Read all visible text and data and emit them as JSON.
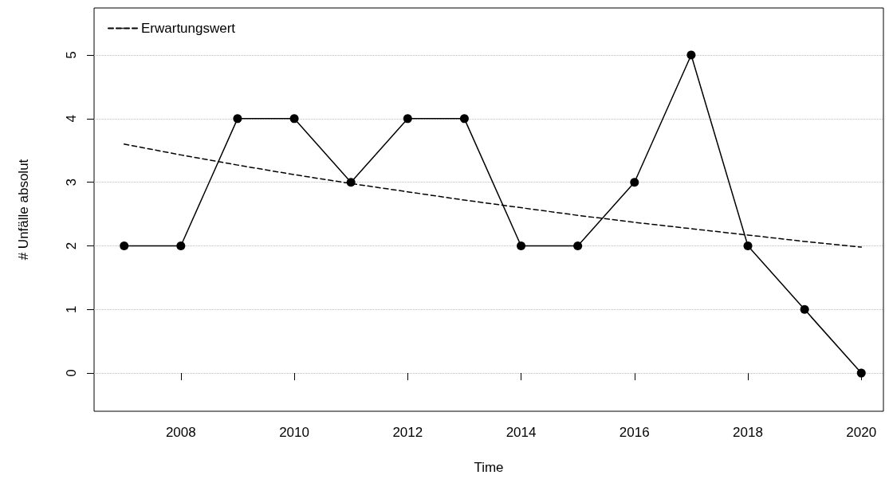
{
  "chart_data": {
    "type": "line",
    "xlabel": "Time",
    "ylabel": "# Unfälle absolut",
    "x": [
      2007,
      2008,
      2009,
      2010,
      2011,
      2012,
      2013,
      2014,
      2015,
      2016,
      2017,
      2018,
      2019,
      2020
    ],
    "series": [
      {
        "color": "#000000",
        "values": [
          2,
          2,
          4,
          4,
          3,
          4,
          4,
          2,
          2,
          3,
          5,
          2,
          1,
          0
        ],
        "marker": "circle",
        "line_style": "solid"
      },
      {
        "name": "Erwartungswert",
        "color": "#000000",
        "values": [
          3.6,
          3.43,
          3.27,
          3.12,
          2.98,
          2.85,
          2.72,
          2.6,
          2.48,
          2.37,
          2.27,
          2.17,
          2.07,
          1.98
        ],
        "marker": "none",
        "line_style": "dashed"
      }
    ],
    "xlim": [
      2006.47,
      2020.39
    ],
    "ylim": [
      -0.6,
      5.74
    ],
    "xticks": [
      2008,
      2010,
      2012,
      2014,
      2016,
      2018,
      2020
    ],
    "yticks": [
      0,
      1,
      2,
      3,
      4,
      5
    ],
    "grid": "y",
    "legend": "top left"
  }
}
